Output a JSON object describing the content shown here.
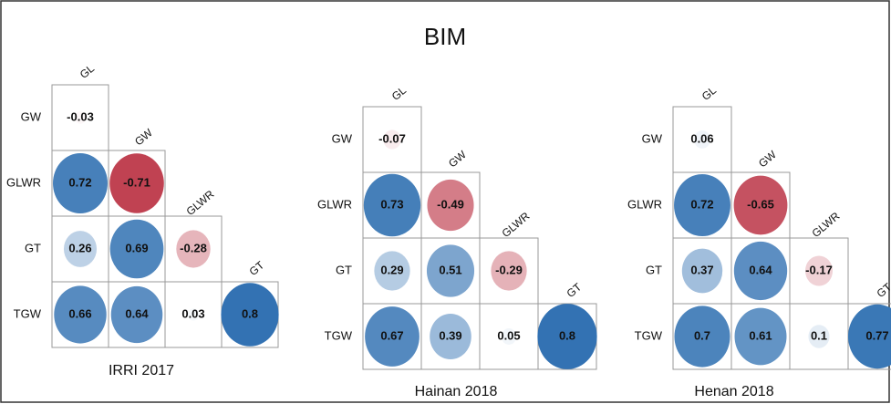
{
  "title": "BIM",
  "chart_data": [
    {
      "type": "correlogram",
      "title": "IRRI 2017",
      "rows": [
        "GW",
        "GLWR",
        "GT",
        "TGW"
      ],
      "columns": [
        "GL",
        "GW",
        "GLWR",
        "GT"
      ],
      "values": [
        [
          -0.03
        ],
        [
          0.72,
          -0.71
        ],
        [
          0.26,
          0.69,
          -0.28
        ],
        [
          0.66,
          0.64,
          0.03,
          0.8
        ]
      ],
      "colorscale": [
        "#b2182b",
        "#ffffff",
        "#2166ac"
      ]
    },
    {
      "type": "correlogram",
      "title": "Hainan 2018",
      "rows": [
        "GW",
        "GLWR",
        "GT",
        "TGW"
      ],
      "columns": [
        "GL",
        "GW",
        "GLWR",
        "GT"
      ],
      "values": [
        [
          -0.07
        ],
        [
          0.73,
          -0.49
        ],
        [
          0.29,
          0.51,
          -0.29
        ],
        [
          0.67,
          0.39,
          0.05,
          0.8
        ]
      ],
      "colorscale": [
        "#b2182b",
        "#ffffff",
        "#2166ac"
      ]
    },
    {
      "type": "correlogram",
      "title": "Henan 2018",
      "rows": [
        "GW",
        "GLWR",
        "GT",
        "TGW"
      ],
      "columns": [
        "GL",
        "GW",
        "GLWR",
        "GT"
      ],
      "values": [
        [
          0.06
        ],
        [
          0.72,
          -0.65
        ],
        [
          0.37,
          0.64,
          -0.17
        ],
        [
          0.7,
          0.61,
          0.1,
          0.77
        ]
      ],
      "colorscale": [
        "#b2182b",
        "#ffffff",
        "#2166ac"
      ]
    }
  ]
}
